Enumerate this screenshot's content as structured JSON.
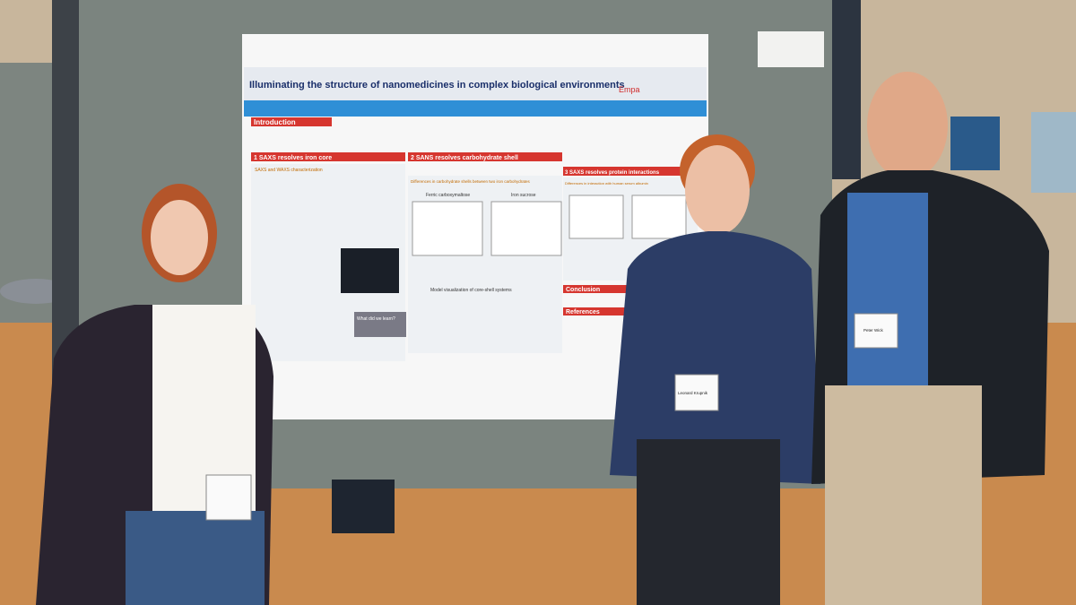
{
  "poster": {
    "title": "Illuminating the structure of nanomedicines in complex biological environments",
    "logo": "Empa",
    "intro_heading": "Introduction",
    "sections": [
      {
        "heading": "1 SAXS resolves iron core",
        "subheading": "SAXS and WAXS characterization"
      },
      {
        "heading": "2 SANS resolves carbohydrate shell",
        "subheading": "Differences in carbohydrate shells between two iron carbohydrates"
      },
      {
        "heading": "3 SAXS resolves protein interactions",
        "subheading": "Differences in interaction with human serum albumin"
      }
    ],
    "panel_labels": [
      "Ferric carboxymaltose",
      "Iron sucrose",
      "Model visualization of core-shell systems",
      "What did we learn?"
    ],
    "conclusion_heading": "Conclusion",
    "references_heading": "References"
  },
  "badges": [
    "Leonard Krupnik",
    "Peter Wick"
  ]
}
